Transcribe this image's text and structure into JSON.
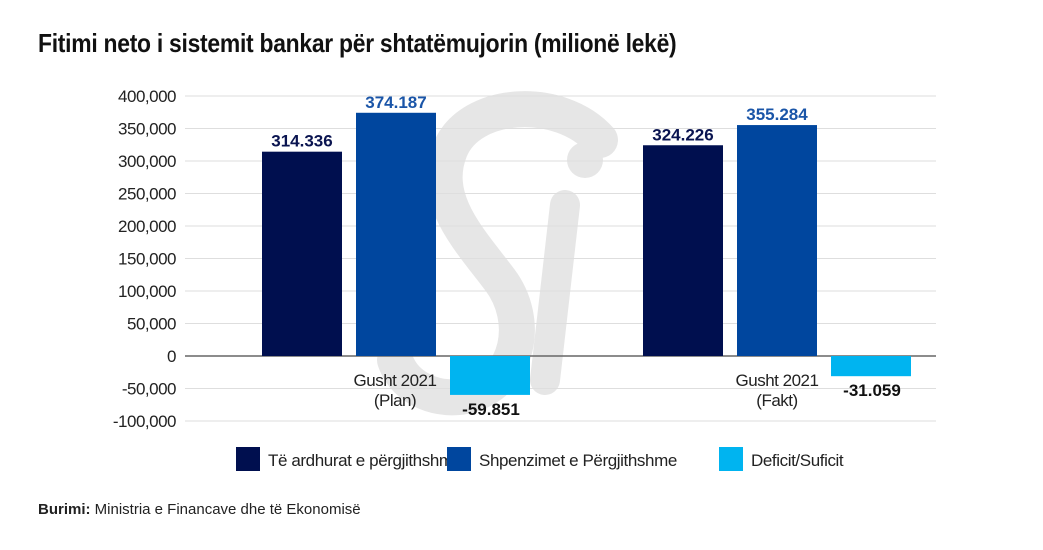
{
  "chart_data": {
    "type": "bar",
    "title": "Fitimi neto i sistemit bankar për shtatëmujorin (milionë lekë)",
    "categories": [
      "Gusht 2021\n(Plan)",
      "Gusht 2021\n(Fakt)"
    ],
    "series": [
      {
        "name": "Të ardhurat e përgjithshme",
        "color": "#000f4f",
        "label_color": "#0a1450",
        "values": [
          314336,
          324226
        ],
        "labels": [
          "314.336",
          "324.226"
        ]
      },
      {
        "name": "Shpenzimet e Përgjithshme",
        "color": "#00469e",
        "label_color": "#1a55a8",
        "values": [
          374187,
          355284
        ],
        "labels": [
          "374.187",
          "355.284"
        ]
      },
      {
        "name": "Deficit/Suficit",
        "color": "#00b4f0",
        "label_color": "#111111",
        "values": [
          -59851,
          -31059
        ],
        "labels": [
          "-59.851",
          "-31.059"
        ]
      }
    ],
    "yticks": [
      "400,000",
      "350,000",
      "300,000",
      "250,000",
      "200,000",
      "150,000",
      "100,000",
      "50,000",
      "0",
      "-50,000",
      "-100,000"
    ],
    "ylim": [
      -100000,
      400000
    ],
    "grid": true,
    "legend": "bottom",
    "xlabel": "",
    "ylabel": ""
  },
  "source": {
    "label": "Burimi:",
    "text": " Ministria e Financave dhe të Ekonomisë"
  },
  "watermark": "Si"
}
